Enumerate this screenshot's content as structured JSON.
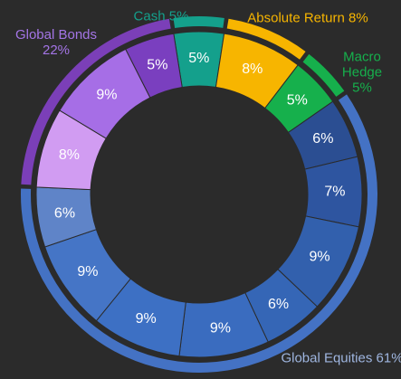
{
  "chart_data": {
    "type": "nested-donut",
    "outer": {
      "categories": [
        "Cash",
        "Absolute Return",
        "Macro Hedge",
        "Global Equities",
        "Global Bonds"
      ],
      "values": [
        5,
        8,
        5,
        61,
        22
      ],
      "value_labels": [
        "5%",
        "8%",
        "5%",
        "61%",
        "22%"
      ],
      "colors": [
        "#14a08c",
        "#f7b500",
        "#16b04c",
        "#4472c4",
        "#7b3fb8"
      ],
      "label_colors": [
        "#14a08c",
        "#f7b500",
        "#16b04c",
        "#9fb6e0",
        "#a475e6"
      ]
    },
    "inner": {
      "values": [
        5,
        8,
        5,
        6,
        7,
        9,
        6,
        9,
        9,
        9,
        6,
        8,
        9,
        5
      ],
      "value_labels": [
        "5%",
        "8%",
        "5%",
        "6%",
        "7%",
        "9%",
        "6%",
        "9%",
        "9%",
        "9%",
        "6%",
        "8%",
        "9%",
        "5%"
      ],
      "colors": [
        "#14a08c",
        "#f7b500",
        "#16b04c",
        "#2b4e92",
        "#2e55a0",
        "#3260ad",
        "#3566b6",
        "#3a6cbf",
        "#3d70c4",
        "#4575c6",
        "#5f84c8",
        "#d19cf2",
        "#a66ee6",
        "#7a3fbf"
      ]
    }
  }
}
